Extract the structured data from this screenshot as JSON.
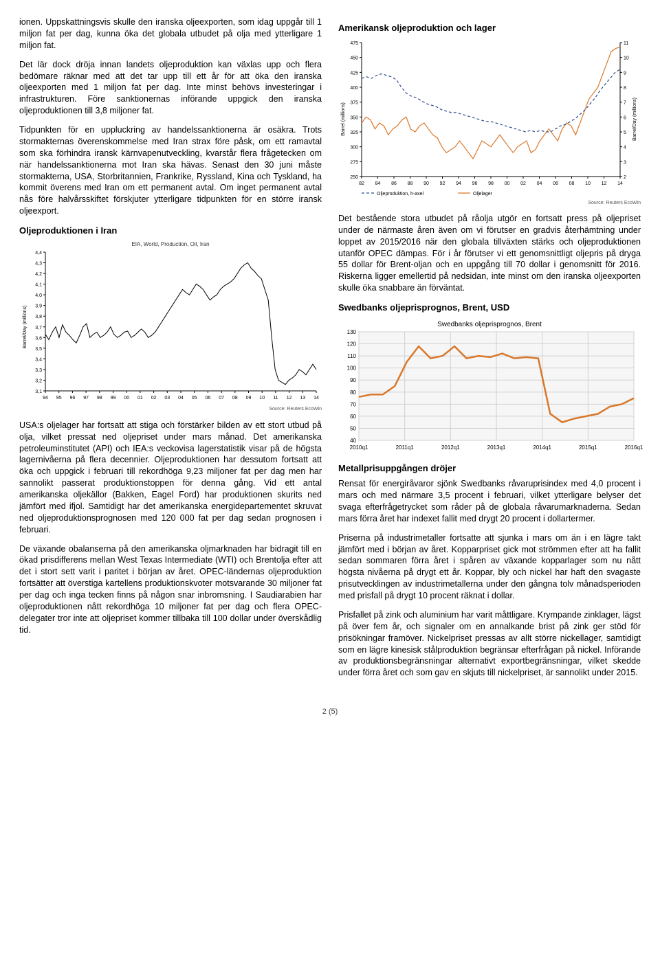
{
  "left": {
    "p1": "ionen. Uppskattningsvis skulle den iranska oljeexporten, som idag uppgår till 1 miljon fat per dag, kunna öka det globala utbudet på olja med ytterligare 1 miljon fat.",
    "p2": "Det lär dock dröja innan landets oljeproduktion kan växlas upp och flera bedömare räknar med att det tar upp till ett år för att öka den iranska oljeexporten med 1 miljon fat per dag. Inte minst behövs investeringar i infrastrukturen. Före sanktionernas införande uppgick den iranska oljeproduktionen till 3,8 miljoner fat.",
    "p3": "Tidpunkten för en uppluckring av handelssanktionerna är osäkra. Trots stormakternas överenskommelse med Iran strax före påsk, om ett ramavtal som ska förhindra iransk kärnvapenutveckling, kvarstår flera frågetecken om när handelssanktionerna mot Iran ska hävas. Senast den 30 juni måste stormakterna, USA, Storbritannien, Frankrike, Ryssland, Kina och Tyskland, ha kommit överens med Iran om ett permanent avtal. Om inget permanent avtal nås före halvårsskiftet förskjuter ytterligare tidpunkten för en större iransk oljeexport.",
    "h1": "Oljeproduktionen i Iran",
    "p4": "USA:s oljelager har fortsatt att stiga och förstärker bilden av ett stort utbud på olja, vilket pressat ned oljepriset under mars månad. Det amerikanska petroleuminstitutet (API) och IEA:s veckovisa lagerstatistik visar på de högsta lagernivåerna på flera decennier. Oljeproduktionen har dessutom fortsatt att öka och uppgick i februari till rekordhöga 9,23 miljoner fat per dag men har sannolikt passerat produktionstoppen för denna gång. Vid ett antal amerikanska oljekällor (Bakken, Eagel Ford) har produktionen skurits ned jämfört med ifjol. Samtidigt har det amerikanska energidepartementet skruvat ned oljeproduktionsprognosen med 120 000 fat per dag sedan prognosen i februari.",
    "p5": "De växande obalanserna på den amerikanska oljmarknaden har bidragit till en ökad prisdifferens mellan West Texas Intermediate (WTI) och Brentolja efter att det i stort sett varit i paritet i början av året. OPEC-ländernas oljeproduktion fortsätter att överstiga kartellens produktionskvoter motsvarande 30 miljoner fat per dag och inga tecken finns på någon snar inbromsning. I Saudiarabien har oljeproduktionen nått rekordhöga 10 miljoner fat per dag och flera OPEC-delegater tror inte att oljepriset kommer tillbaka till 100 dollar under överskådlig tid."
  },
  "right": {
    "h1": "Amerikansk oljeproduktion och lager",
    "p1": "Det bestående stora utbudet på råolja utgör en fortsatt press på oljepriset under de närmaste åren även om vi förutser en gradvis återhämtning under loppet av 2015/2016 när den globala tillväxten stärks och oljeproduktionen utanför OPEC dämpas. För i år förutser vi ett genomsnittligt oljepris på dryga 55 dollar för Brent-oljan och en uppgång till 70 dollar i genomsnitt för 2016. Riskerna ligger emellertid på nedsidan, inte minst om den iranska oljeexporten skulle öka snabbare än förväntat.",
    "h2": "Swedbanks oljeprisprognos, Brent, USD",
    "h3": "Metallprisuppgången dröjer",
    "p2": "Rensat för energiråvaror sjönk Swedbanks råvaruprisindex med 4,0 procent i mars och med närmare 3,5 procent i februari, vilket ytterligare belyser det svaga efterfrågetrycket som råder på de globala råvarumarknaderna. Sedan mars förra året har indexet fallit med drygt 20 procent i dollartermer.",
    "p3": "Priserna på industrimetaller fortsatte att sjunka i mars om än i en lägre takt jämfört med i början av året. Kopparpriset gick mot strömmen efter att ha fallit sedan sommaren förra året i spåren av växande kopparlager som nu nått högsta nivåerna på drygt ett år. Koppar, bly och nickel har haft den svagaste prisutvecklingen av industrimetallerna under den gångna tolv månadsperioden med prisfall på drygt 10 procent räknat i dollar.",
    "p4": "Prisfallet på zink och aluminium har varit måttligare. Krympande zinklager, lägst på över fem år, och signaler om en annalkande brist på zink ger stöd för prisökningar framöver. Nickelpriset pressas av allt större nickellager, samtidigt som en lägre kinesisk stålproduktion begränsar efterfrågan på nickel. Införande av produktionsbegränsningar alternativt exportbegränsningar, vilket skedde under förra året och som gav en skjuts till nickelpriset, är sannolikt under 2015."
  },
  "chart_iran": {
    "type": "line",
    "subtitle": "EIA, World, Production, Oil, Iran",
    "x_labels": [
      "94",
      "95",
      "96",
      "97",
      "98",
      "99",
      "00",
      "01",
      "02",
      "03",
      "04",
      "05",
      "06",
      "07",
      "08",
      "09",
      "10",
      "11",
      "12",
      "13",
      "14"
    ],
    "y_labels": [
      "3,1",
      "3,2",
      "3,3",
      "3,4",
      "3,5",
      "3,6",
      "3,7",
      "3,8",
      "3,9",
      "4,0",
      "4,1",
      "4,2",
      "4,3",
      "4,4"
    ],
    "ylim": [
      3.1,
      4.4
    ],
    "y_axis_label": "Barrel/Day (millions)",
    "line_color": "#000000",
    "background_color": "#ffffff",
    "grid_on": false,
    "source": "Source: Reuters EcoWin",
    "data": [
      3.63,
      3.58,
      3.65,
      3.7,
      3.6,
      3.72,
      3.65,
      3.62,
      3.58,
      3.55,
      3.62,
      3.7,
      3.73,
      3.6,
      3.63,
      3.65,
      3.6,
      3.62,
      3.65,
      3.7,
      3.63,
      3.6,
      3.62,
      3.65,
      3.66,
      3.6,
      3.62,
      3.65,
      3.68,
      3.65,
      3.6,
      3.62,
      3.65,
      3.7,
      3.75,
      3.8,
      3.85,
      3.9,
      3.95,
      4.0,
      4.05,
      4.02,
      4.0,
      4.05,
      4.1,
      4.08,
      4.05,
      4.0,
      3.95,
      3.98,
      4.0,
      4.05,
      4.08,
      4.1,
      4.12,
      4.15,
      4.2,
      4.25,
      4.28,
      4.3,
      4.25,
      4.22,
      4.18,
      4.15,
      4.05,
      3.95,
      3.6,
      3.3,
      3.2,
      3.18,
      3.16,
      3.2,
      3.22,
      3.25,
      3.3,
      3.28,
      3.25,
      3.3,
      3.35,
      3.3
    ]
  },
  "chart_us": {
    "type": "dual-line",
    "x_labels": [
      "82",
      "84",
      "86",
      "88",
      "90",
      "92",
      "94",
      "96",
      "98",
      "00",
      "02",
      "04",
      "06",
      "08",
      "10",
      "12",
      "14"
    ],
    "left_axis": {
      "ylim": [
        250,
        475
      ],
      "step": 25,
      "label": "Barrel (millions)",
      "color": "#2a4b8d"
    },
    "right_axis": {
      "ylim": [
        2,
        11
      ],
      "step": 1,
      "label": "Barrel/Day (millions)",
      "color": "#d9772a"
    },
    "legend": [
      "Oljeproduktion, h-axel",
      "Oljelager"
    ],
    "legend_colors": [
      "#2a4b8d",
      "#d9772a"
    ],
    "source": "Source: Reuters EcoWin",
    "background_color": "#ffffff",
    "series_lager": [
      340,
      350,
      345,
      330,
      340,
      335,
      320,
      330,
      335,
      345,
      350,
      330,
      325,
      335,
      340,
      330,
      320,
      315,
      300,
      290,
      295,
      300,
      310,
      300,
      290,
      280,
      295,
      310,
      305,
      300,
      310,
      320,
      310,
      300,
      290,
      300,
      305,
      310,
      290,
      295,
      310,
      320,
      330,
      320,
      310,
      330,
      340,
      335,
      320,
      340,
      360,
      380,
      390,
      400,
      420,
      440,
      460,
      465,
      468
    ],
    "series_prod": [
      8.6,
      8.7,
      8.6,
      8.8,
      8.9,
      8.8,
      8.7,
      8.5,
      8.0,
      7.6,
      7.4,
      7.3,
      7.1,
      6.9,
      6.8,
      6.7,
      6.5,
      6.4,
      6.3,
      6.3,
      6.2,
      6.1,
      6.0,
      5.9,
      5.8,
      5.7,
      5.7,
      5.6,
      5.5,
      5.4,
      5.3,
      5.2,
      5.1,
      5.0,
      5.1,
      5.0,
      5.1,
      5.0,
      5.0,
      5.2,
      5.4,
      5.5,
      5.7,
      5.9,
      6.2,
      6.5,
      6.9,
      7.3,
      7.8,
      8.2,
      8.6,
      9.0,
      9.2
    ]
  },
  "chart_brent": {
    "type": "line",
    "title": "Swedbanks oljeprisprognos, Brent",
    "x_labels": [
      "2010q1",
      "2011q1",
      "2012q1",
      "2013q1",
      "2014q1",
      "2015q1",
      "2016q1"
    ],
    "ylim": [
      40,
      130
    ],
    "ytick_step": 10,
    "line_color": "#d9772a",
    "background_color": "#f6f6f6",
    "grid_color": "#d0d0d0",
    "data": [
      76,
      78,
      78,
      85,
      105,
      118,
      108,
      110,
      118,
      108,
      110,
      109,
      112,
      108,
      109,
      108,
      62,
      55,
      58,
      60,
      62,
      68,
      70,
      75
    ]
  },
  "footer": "2 (5)"
}
